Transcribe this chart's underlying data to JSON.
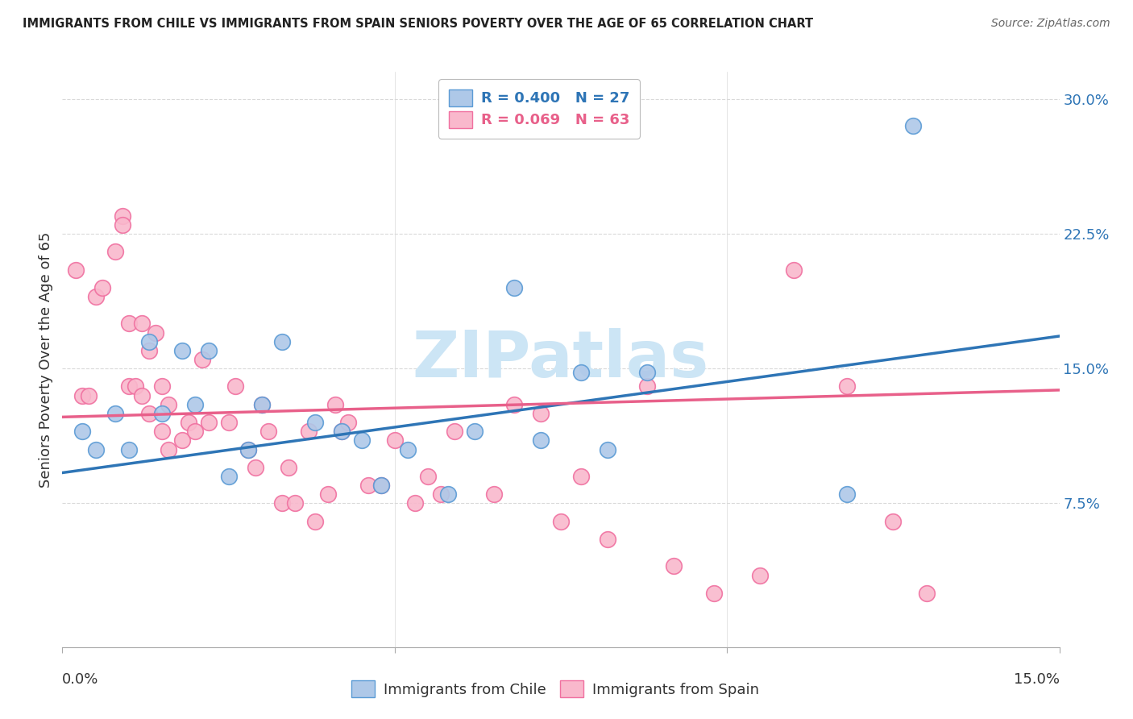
{
  "title": "IMMIGRANTS FROM CHILE VS IMMIGRANTS FROM SPAIN SENIORS POVERTY OVER THE AGE OF 65 CORRELATION CHART",
  "source": "Source: ZipAtlas.com",
  "ylabel": "Seniors Poverty Over the Age of 65",
  "xlim": [
    0.0,
    0.15
  ],
  "ylim": [
    -0.005,
    0.315
  ],
  "yticks": [
    0.075,
    0.15,
    0.225,
    0.3
  ],
  "ytick_labels": [
    "7.5%",
    "15.0%",
    "22.5%",
    "30.0%"
  ],
  "legend_R_chile": "R = 0.400",
  "legend_N_chile": "N = 27",
  "legend_R_spain": "R = 0.069",
  "legend_N_spain": "N = 63",
  "legend_label_chile": "Immigrants from Chile",
  "legend_label_spain": "Immigrants from Spain",
  "chile_color": "#aec8e8",
  "spain_color": "#f9b8cc",
  "chile_edge_color": "#5b9bd5",
  "spain_edge_color": "#f070a0",
  "chile_line_color": "#2e75b6",
  "spain_line_color": "#e8608a",
  "tick_color": "#2e75b6",
  "background_color": "#ffffff",
  "grid_color": "#d9d9d9",
  "watermark_text": "ZIPatlas",
  "watermark_color": "#cce5f5",
  "chile_scatter_x": [
    0.003,
    0.005,
    0.008,
    0.01,
    0.013,
    0.015,
    0.018,
    0.02,
    0.022,
    0.025,
    0.028,
    0.03,
    0.033,
    0.038,
    0.042,
    0.045,
    0.048,
    0.052,
    0.058,
    0.062,
    0.068,
    0.072,
    0.078,
    0.082,
    0.088,
    0.118,
    0.128
  ],
  "chile_scatter_y": [
    0.115,
    0.105,
    0.125,
    0.105,
    0.165,
    0.125,
    0.16,
    0.13,
    0.16,
    0.09,
    0.105,
    0.13,
    0.165,
    0.12,
    0.115,
    0.11,
    0.085,
    0.105,
    0.08,
    0.115,
    0.195,
    0.11,
    0.148,
    0.105,
    0.148,
    0.08,
    0.285
  ],
  "spain_scatter_x": [
    0.002,
    0.003,
    0.004,
    0.005,
    0.006,
    0.008,
    0.009,
    0.009,
    0.01,
    0.01,
    0.011,
    0.012,
    0.012,
    0.013,
    0.013,
    0.014,
    0.015,
    0.015,
    0.016,
    0.016,
    0.018,
    0.019,
    0.02,
    0.021,
    0.022,
    0.025,
    0.026,
    0.028,
    0.029,
    0.03,
    0.031,
    0.033,
    0.034,
    0.035,
    0.037,
    0.038,
    0.04,
    0.041,
    0.042,
    0.043,
    0.046,
    0.048,
    0.05,
    0.053,
    0.055,
    0.057,
    0.059,
    0.06,
    0.062,
    0.065,
    0.068,
    0.072,
    0.075,
    0.078,
    0.082,
    0.088,
    0.092,
    0.098,
    0.105,
    0.11,
    0.118,
    0.125,
    0.13
  ],
  "spain_scatter_y": [
    0.205,
    0.135,
    0.135,
    0.19,
    0.195,
    0.215,
    0.235,
    0.23,
    0.175,
    0.14,
    0.14,
    0.175,
    0.135,
    0.125,
    0.16,
    0.17,
    0.14,
    0.115,
    0.13,
    0.105,
    0.11,
    0.12,
    0.115,
    0.155,
    0.12,
    0.12,
    0.14,
    0.105,
    0.095,
    0.13,
    0.115,
    0.075,
    0.095,
    0.075,
    0.115,
    0.065,
    0.08,
    0.13,
    0.115,
    0.12,
    0.085,
    0.085,
    0.11,
    0.075,
    0.09,
    0.08,
    0.115,
    0.285,
    0.285,
    0.08,
    0.13,
    0.125,
    0.065,
    0.09,
    0.055,
    0.14,
    0.04,
    0.025,
    0.035,
    0.205,
    0.14,
    0.065,
    0.025
  ],
  "chile_trendline_x": [
    0.0,
    0.15
  ],
  "chile_trendline_y": [
    0.092,
    0.168
  ],
  "spain_trendline_x": [
    0.0,
    0.15
  ],
  "spain_trendline_y": [
    0.123,
    0.138
  ]
}
